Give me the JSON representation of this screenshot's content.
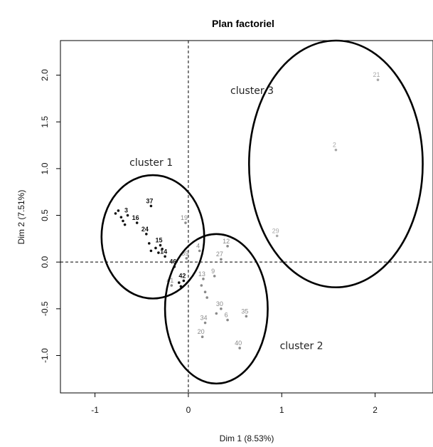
{
  "chart_data": {
    "type": "scatter",
    "title": "Plan factoriel",
    "xlabel": "Dim 1 (8.53%)",
    "ylabel": "Dim 2 (7.51%)",
    "xlim": [
      -1.37,
      2.62
    ],
    "ylim": [
      -1.4,
      2.37
    ],
    "xticks": [
      -1,
      0,
      1,
      2
    ],
    "yticks": [
      -1.0,
      -0.5,
      0.0,
      0.5,
      1.0,
      1.5,
      2.0
    ],
    "xtick_labels": [
      "-1",
      "0",
      "1",
      "2"
    ],
    "ytick_labels": [
      "-1.0",
      "-0.5",
      "0.0",
      "0.5",
      "1.0",
      "1.5",
      "2.0"
    ],
    "reference_lines": {
      "x": 0,
      "y": 0,
      "style": "dashed"
    },
    "colors": {
      "cluster1": "#111111",
      "cluster2": "#8a8a8a",
      "cluster3": "#a8a8a8"
    },
    "points": [
      {
        "label": "37",
        "x": -0.4,
        "y": 0.6,
        "cluster": 1
      },
      {
        "label": "3",
        "x": -0.65,
        "y": 0.5,
        "cluster": 1
      },
      {
        "label": "16",
        "x": -0.55,
        "y": 0.42,
        "cluster": 1
      },
      {
        "label": "24",
        "x": -0.45,
        "y": 0.3,
        "cluster": 1
      },
      {
        "label": "",
        "x": -0.75,
        "y": 0.55,
        "cluster": 1
      },
      {
        "label": "",
        "x": -0.72,
        "y": 0.48,
        "cluster": 1
      },
      {
        "label": "",
        "x": -0.7,
        "y": 0.44,
        "cluster": 1
      },
      {
        "label": "",
        "x": -0.68,
        "y": 0.4,
        "cluster": 1
      },
      {
        "label": "",
        "x": -0.78,
        "y": 0.52,
        "cluster": 1
      },
      {
        "label": "15",
        "x": -0.3,
        "y": 0.18,
        "cluster": 1
      },
      {
        "label": "",
        "x": -0.35,
        "y": 0.15,
        "cluster": 1
      },
      {
        "label": "",
        "x": -0.4,
        "y": 0.12,
        "cluster": 1
      },
      {
        "label": "",
        "x": -0.42,
        "y": 0.2,
        "cluster": 1
      },
      {
        "label": "",
        "x": -0.32,
        "y": 0.1,
        "cluster": 1
      },
      {
        "label": "",
        "x": -0.28,
        "y": 0.14,
        "cluster": 1
      },
      {
        "label": "14",
        "x": -0.25,
        "y": 0.06,
        "cluster": 1
      },
      {
        "label": "46",
        "x": -0.15,
        "y": -0.05,
        "cluster": 1
      },
      {
        "label": "42",
        "x": -0.05,
        "y": -0.2,
        "cluster": 1
      },
      {
        "label": "",
        "x": -0.1,
        "y": -0.22,
        "cluster": 1
      },
      {
        "label": "",
        "x": -0.08,
        "y": -0.26,
        "cluster": 1
      },
      {
        "label": "19",
        "x": -0.03,
        "y": 0.42,
        "cluster": 2
      },
      {
        "label": "4",
        "x": 0.12,
        "y": 0.12,
        "cluster": 2
      },
      {
        "label": "39",
        "x": -0.02,
        "y": 0.04,
        "cluster": 2
      },
      {
        "label": "41",
        "x": -0.18,
        "y": -0.25,
        "cluster": 2
      },
      {
        "label": "12",
        "x": 0.42,
        "y": 0.17,
        "cluster": 2
      },
      {
        "label": "27",
        "x": 0.35,
        "y": 0.03,
        "cluster": 2
      },
      {
        "label": "13",
        "x": 0.16,
        "y": -0.18,
        "cluster": 2
      },
      {
        "label": "9",
        "x": 0.28,
        "y": -0.15,
        "cluster": 2
      },
      {
        "label": "",
        "x": 0.14,
        "y": -0.25,
        "cluster": 2
      },
      {
        "label": "",
        "x": 0.18,
        "y": -0.32,
        "cluster": 2
      },
      {
        "label": "",
        "x": 0.2,
        "y": -0.38,
        "cluster": 2
      },
      {
        "label": "30",
        "x": 0.35,
        "y": -0.5,
        "cluster": 2
      },
      {
        "label": "",
        "x": 0.3,
        "y": -0.55,
        "cluster": 2
      },
      {
        "label": "35",
        "x": 0.62,
        "y": -0.58,
        "cluster": 2
      },
      {
        "label": "34",
        "x": 0.18,
        "y": -0.65,
        "cluster": 2
      },
      {
        "label": "6",
        "x": 0.42,
        "y": -0.62,
        "cluster": 2
      },
      {
        "label": "20",
        "x": 0.15,
        "y": -0.8,
        "cluster": 2
      },
      {
        "label": "40",
        "x": 0.55,
        "y": -0.92,
        "cluster": 2
      },
      {
        "label": "21",
        "x": 2.03,
        "y": 1.95,
        "cluster": 3
      },
      {
        "label": "2",
        "x": 1.58,
        "y": 1.2,
        "cluster": 3
      },
      {
        "label": "29",
        "x": 0.95,
        "y": 0.28,
        "cluster": 3
      }
    ],
    "ellipses": [
      {
        "name": "cluster 1",
        "cx": -0.38,
        "cy": 0.27,
        "rx": 0.55,
        "ry": 0.66
      },
      {
        "name": "cluster 2",
        "cx": 0.3,
        "cy": -0.5,
        "rx": 0.55,
        "ry": 0.8
      },
      {
        "name": "cluster 3",
        "cx": 1.58,
        "cy": 1.05,
        "rx": 0.93,
        "ry": 1.32
      }
    ],
    "annotations": [
      {
        "text": "cluster 1",
        "x": -0.63,
        "y": 1.03
      },
      {
        "text": "cluster 3",
        "x": 0.45,
        "y": 1.8
      },
      {
        "text": "cluster 2",
        "x": 0.98,
        "y": -0.93
      }
    ]
  }
}
